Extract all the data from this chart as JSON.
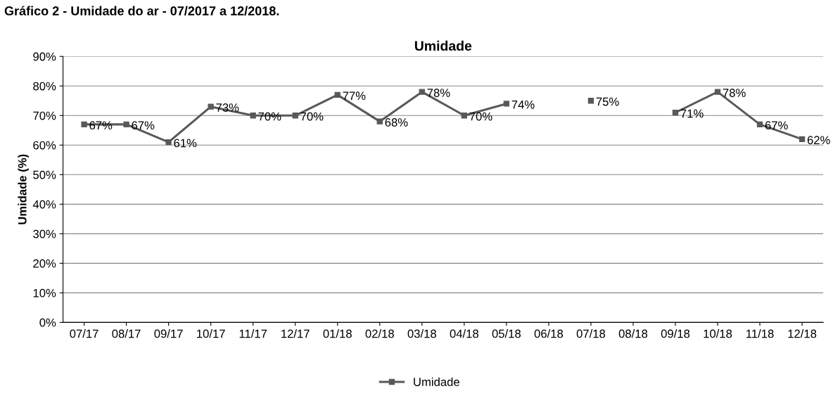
{
  "chart_data": {
    "type": "line",
    "title": "Umidade",
    "ylabel": "Umidade (%)",
    "annotations": [
      "Gráfico 2 - Umidade do ar - 07/2017 a 12/2018."
    ],
    "categories": [
      "07/17",
      "08/17",
      "09/17",
      "10/17",
      "11/17",
      "12/17",
      "01/18",
      "02/18",
      "03/18",
      "04/18",
      "05/18",
      "06/18",
      "07/18",
      "08/18",
      "09/18",
      "10/18",
      "11/18",
      "12/18"
    ],
    "series": [
      {
        "name": "Umidade",
        "color": "#595959",
        "values": [
          67,
          67,
          61,
          73,
          70,
          70,
          77,
          68,
          78,
          70,
          74,
          null,
          75,
          null,
          71,
          78,
          67,
          62
        ],
        "value_labels": [
          "67%",
          "67%",
          "61%",
          "73%",
          "70%",
          "70%",
          "77%",
          "68%",
          "78%",
          "70%",
          "74%",
          null,
          "75%",
          null,
          "71%",
          "78%",
          "67%",
          "62%"
        ]
      }
    ],
    "ylim": [
      0,
      90
    ],
    "yticks": [
      {
        "value": 0,
        "label": "0%"
      },
      {
        "value": 10,
        "label": "10%"
      },
      {
        "value": 20,
        "label": "20%"
      },
      {
        "value": 30,
        "label": "30%"
      },
      {
        "value": 40,
        "label": "40%"
      },
      {
        "value": 50,
        "label": "50%"
      },
      {
        "value": 60,
        "label": "60%"
      },
      {
        "value": 70,
        "label": "70%"
      },
      {
        "value": 80,
        "label": "80%"
      },
      {
        "value": 90,
        "label": "90%"
      }
    ],
    "grid": "y",
    "legend": "bottom",
    "marker": "square",
    "line_style": "solid"
  }
}
